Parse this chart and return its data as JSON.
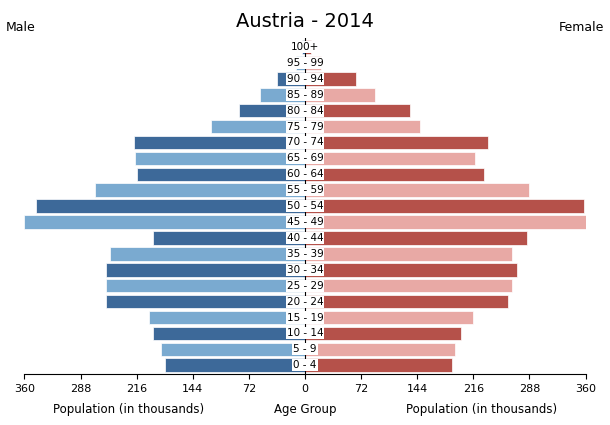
{
  "title": "Austria - 2014",
  "label_male": "Male",
  "label_female": "Female",
  "xlabel_left": "Population (in thousands)",
  "xlabel_center": "Age Group",
  "xlabel_right": "Population (in thousands)",
  "age_groups": [
    "100+",
    "95 - 99",
    "90 - 94",
    "85 - 89",
    "80 - 84",
    "75 - 79",
    "70 - 74",
    "65 - 69",
    "60 - 64",
    "55 - 59",
    "50 - 54",
    "45 - 49",
    "40 - 44",
    "35 - 39",
    "30 - 34",
    "25 - 29",
    "20 - 24",
    "15 - 19",
    "10 - 14",
    "5 - 9",
    "0 - 4"
  ],
  "male_values": [
    4,
    12,
    36,
    58,
    85,
    120,
    220,
    218,
    215,
    270,
    345,
    360,
    195,
    250,
    255,
    255,
    255,
    200,
    195,
    185,
    180
  ],
  "female_values": [
    8,
    20,
    65,
    90,
    135,
    148,
    235,
    218,
    230,
    288,
    358,
    365,
    285,
    265,
    272,
    265,
    260,
    215,
    200,
    192,
    188
  ],
  "male_dark": "#3d6999",
  "male_light": "#7aaad0",
  "female_dark": "#b5514a",
  "female_light": "#e8a9a5",
  "xlim": 360,
  "xticks": [
    360,
    288,
    216,
    144,
    72,
    0,
    72,
    144,
    216,
    288,
    360
  ],
  "xtick_labels": [
    "360",
    "288",
    "216",
    "144",
    "72",
    "0",
    "72",
    "144",
    "216",
    "288",
    "360"
  ],
  "background_color": "#ffffff",
  "bar_edge_color": "#ffffff",
  "bar_linewidth": 0.5,
  "title_fontsize": 14,
  "label_fontsize": 9,
  "tick_fontsize": 8,
  "age_label_fontsize": 7.5,
  "xlabel_fontsize": 8.5
}
